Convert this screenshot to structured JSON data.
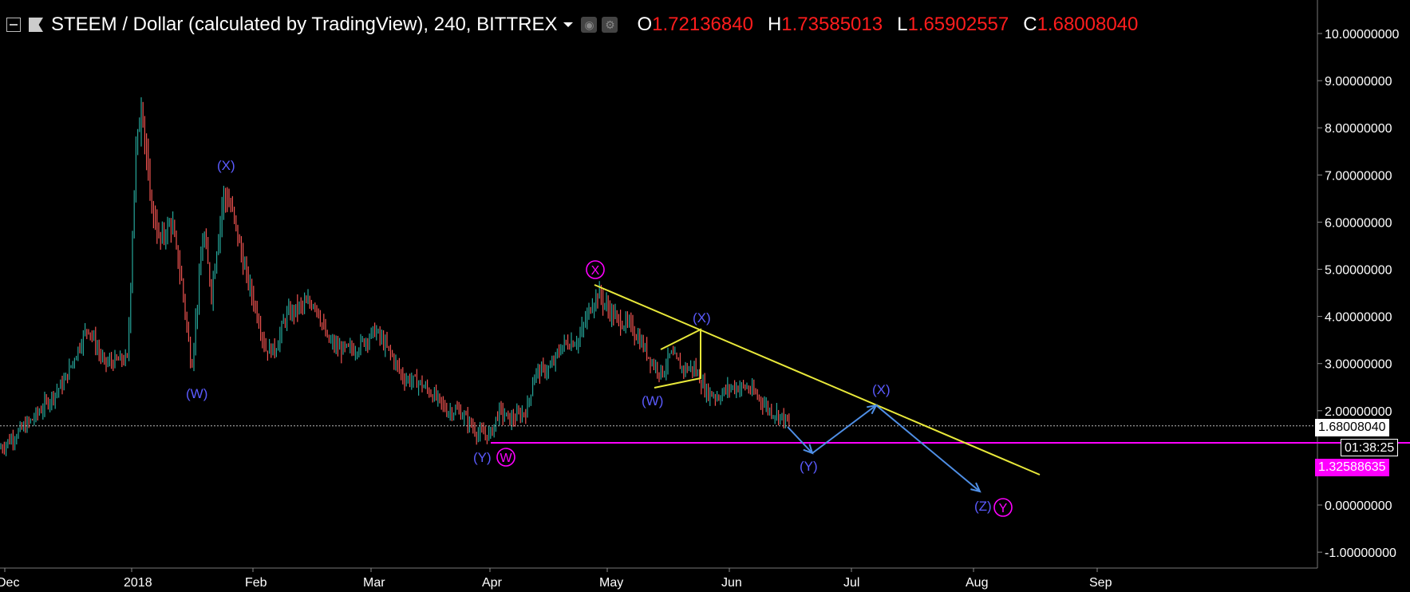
{
  "header": {
    "title": "STEEM / Dollar (calculated by TradingView), 240, BITTREX",
    "open_label": "O",
    "open": "1.72136840",
    "high_label": "H",
    "high": "1.73585013",
    "low_label": "L",
    "low": "1.65902557",
    "close_label": "C",
    "close": "1.68008040"
  },
  "price_axis": {
    "ticks": [
      "10.00000000",
      "9.00000000",
      "8.00000000",
      "7.00000000",
      "6.00000000",
      "5.00000000",
      "4.00000000",
      "3.00000000",
      "2.00000000",
      "0.00000000",
      "-1.00000000"
    ],
    "tick_values": [
      10,
      9,
      8,
      7,
      6,
      5,
      4,
      3,
      2,
      0,
      -1
    ],
    "last_price": "1.68008040",
    "countdown": "01:38:25",
    "level_price": "1.32588635"
  },
  "time_axis": {
    "labels": [
      "Dec",
      "2018",
      "Feb",
      "Mar",
      "Apr",
      "May",
      "Jun",
      "Jul",
      "Aug",
      "Sep"
    ]
  },
  "annotations": {
    "blue_labels": [
      "(X)",
      "(W)",
      "(Y)",
      "(X)",
      "(W)",
      "(Y)",
      "(X)",
      "(Z)"
    ],
    "circled_labels": [
      "X",
      "W",
      "Y"
    ]
  },
  "colors": {
    "up_candle": "#26a69a",
    "down_candle": "#ef5350",
    "trendline": "#e8e83a",
    "support": "#ff00ff",
    "wave_label": "#5b5bff",
    "projection": "#4f8fe6",
    "ohlc_value": "#ff1d1d"
  },
  "chart_data": {
    "type": "line",
    "title": "STEEM / Dollar (calculated by TradingView), 240, BITTREX",
    "xlabel": "",
    "ylabel": "",
    "ylim": [
      -1.2,
      10.5
    ],
    "x": [
      "Dec",
      "2018",
      "Feb",
      "Mar",
      "Apr",
      "May",
      "Jun",
      "Jul"
    ],
    "series": [
      {
        "values": [
          1.2,
          3.2,
          5.5,
          3.8,
          1.6,
          4.4,
          2.6,
          1.68
        ]
      }
    ],
    "horizontal_line": 1.32588635,
    "trendline": {
      "from": [
        "late Apr",
        4.7
      ],
      "to": [
        "mid Aug",
        0.7
      ]
    }
  }
}
